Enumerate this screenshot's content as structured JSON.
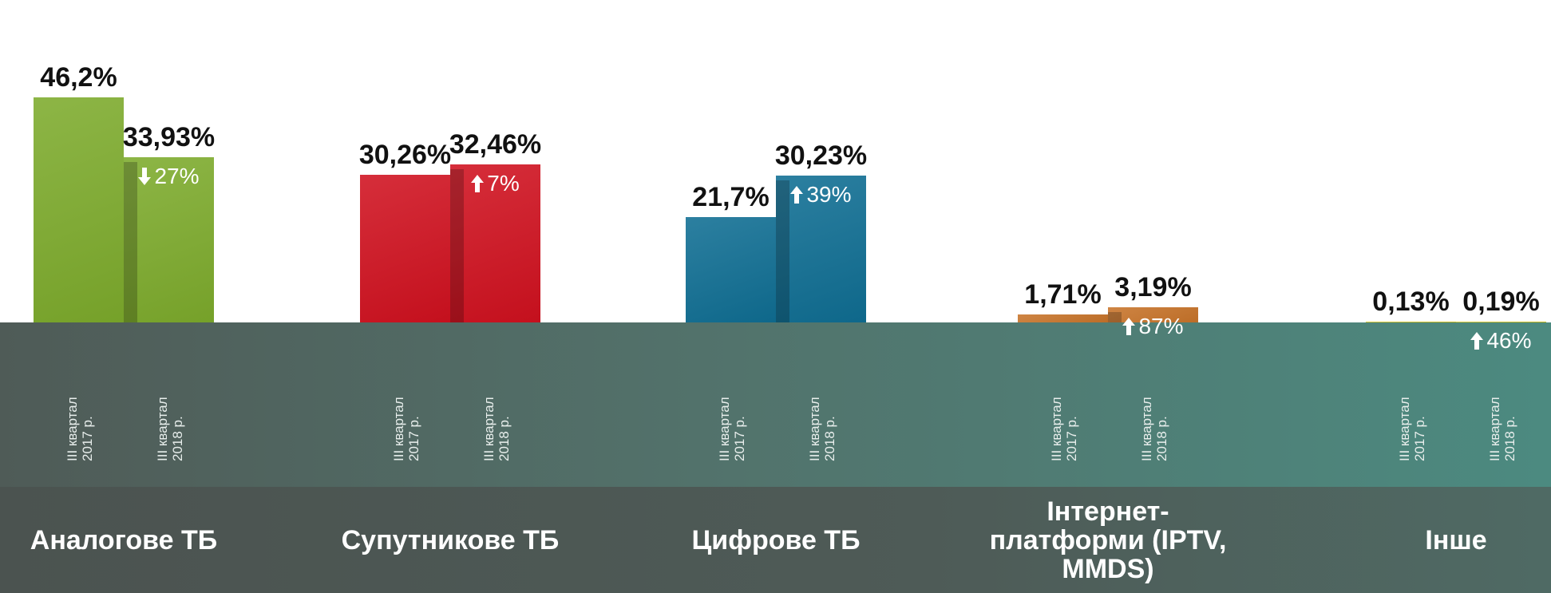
{
  "chart_data": {
    "type": "bar",
    "categories": [
      "Аналогове ТБ",
      "Супутникове ТБ",
      "Цифрове ТБ",
      "Інтернет-платформи (IPTV, MMDS)",
      "Інше"
    ],
    "colors": [
      "#7dab2c",
      "#d0111f",
      "#0f6e93",
      "#c8742a",
      "#d6c41e"
    ],
    "series": [
      {
        "name": "III квартал 2017 р.",
        "values": [
          46.2,
          30.26,
          21.7,
          1.71,
          0.13
        ],
        "value_labels": [
          "46,2%",
          "30,26%",
          "21,7%",
          "1,71%",
          "0,13%"
        ]
      },
      {
        "name": "III квартал 2018 р.",
        "values": [
          33.93,
          32.46,
          30.23,
          3.19,
          0.19
        ],
        "value_labels": [
          "33,93%",
          "32,46%",
          "30,23%",
          "3,19%",
          "0,19%"
        ]
      }
    ],
    "changes": {
      "values": [
        27,
        7,
        39,
        87,
        46
      ],
      "value_labels": [
        "27%",
        "7%",
        "39%",
        "87%",
        "46%"
      ],
      "directions": [
        "down",
        "up",
        "up",
        "up",
        "up"
      ]
    }
  }
}
